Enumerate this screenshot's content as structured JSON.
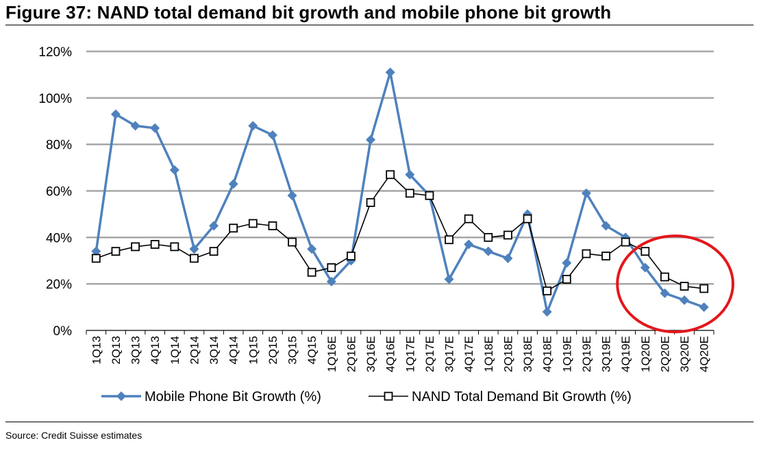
{
  "title": "Figure 37: NAND total demand bit growth and mobile phone bit growth",
  "source": "Source: Credit Suisse estimates",
  "colors": {
    "mobile": "#4f81bd",
    "nand": "#000000",
    "grid": "#a6a6a6",
    "highlight": "#e3171b"
  },
  "chart_data": {
    "type": "line",
    "categories": [
      "1Q13",
      "2Q13",
      "3Q13",
      "4Q13",
      "1Q14",
      "2Q14",
      "3Q14",
      "4Q14",
      "1Q15",
      "2Q15",
      "3Q15",
      "4Q15",
      "1Q16E",
      "2Q16E",
      "3Q16E",
      "4Q16E",
      "1Q17E",
      "2Q17E",
      "3Q17E",
      "4Q17E",
      "1Q18E",
      "2Q18E",
      "3Q18E",
      "4Q18E",
      "1Q19E",
      "2Q19E",
      "3Q19E",
      "4Q19E",
      "1Q20E",
      "2Q20E",
      "3Q20E",
      "4Q20E"
    ],
    "series": [
      {
        "name": "Mobile Phone Bit Growth (%)",
        "marker": "diamond",
        "values": [
          34,
          93,
          88,
          87,
          69,
          35,
          45,
          63,
          88,
          84,
          58,
          35,
          21,
          30,
          82,
          111,
          67,
          58,
          22,
          37,
          34,
          31,
          50,
          8,
          29,
          59,
          45,
          40,
          27,
          16,
          13,
          10
        ]
      },
      {
        "name": "NAND Total Demand Bit Growth (%)",
        "marker": "square-open",
        "values": [
          31,
          34,
          36,
          37,
          36,
          31,
          34,
          44,
          46,
          45,
          38,
          25,
          27,
          32,
          55,
          67,
          59,
          58,
          39,
          48,
          40,
          41,
          48,
          17,
          22,
          33,
          32,
          38,
          34,
          23,
          19,
          18
        ]
      }
    ],
    "ylim": [
      0,
      120
    ],
    "yticks": [
      0,
      20,
      40,
      60,
      80,
      100,
      120
    ],
    "ytick_labels": [
      "0%",
      "20%",
      "40%",
      "60%",
      "80%",
      "100%",
      "120%"
    ],
    "grid": true,
    "legend_position": "bottom",
    "annotation": "red ellipse around 4Q19E–4Q20E"
  }
}
